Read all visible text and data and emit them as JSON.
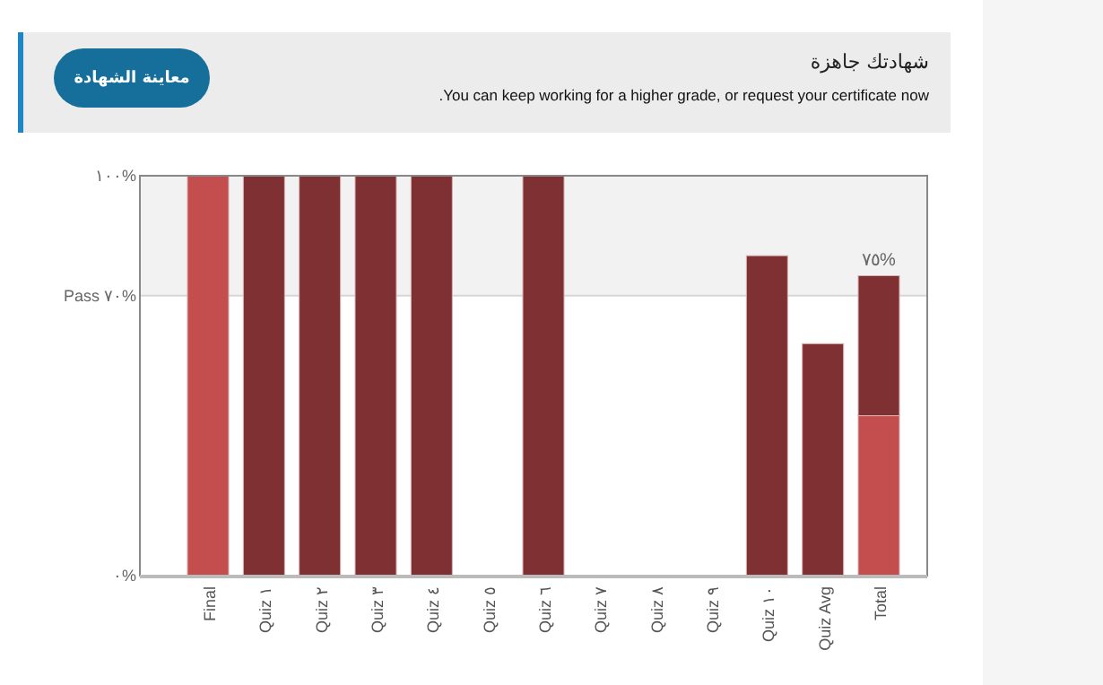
{
  "chart_data": {
    "type": "bar",
    "title": "شهادتك جاهزة",
    "subtitle": "You can keep working for a higher grade, or request your certificate now.",
    "annotations": [
      "معاينة الشهادة"
    ],
    "categories": [
      "Final",
      "Quiz ١",
      "Quiz ٢",
      "Quiz ٣",
      "Quiz ٤",
      "Quiz ٥",
      "Quiz ٦",
      "Quiz ٧",
      "Quiz ٨",
      "Quiz ٩",
      "Quiz ١٠",
      "Quiz Avg",
      "Total"
    ],
    "stacked": true,
    "series": [
      {
        "color": "#c44d4e",
        "values": [
          100,
          null,
          null,
          null,
          null,
          null,
          null,
          null,
          null,
          null,
          null,
          null,
          40
        ]
      },
      {
        "color": "#7f3033",
        "values": [
          null,
          100,
          100,
          100,
          100,
          0,
          100,
          0,
          0,
          0,
          80,
          58,
          35
        ]
      }
    ],
    "totals": [
      null,
      null,
      null,
      null,
      null,
      null,
      null,
      null,
      null,
      null,
      null,
      null,
      "٧٥%"
    ],
    "ylim": [
      0,
      100
    ],
    "yticks": [
      {
        "value": 0,
        "label": "٠%"
      },
      {
        "value": 70,
        "label": "Pass ٧٠%"
      },
      {
        "value": 100,
        "label": "١٠٠%"
      }
    ],
    "bands": [
      {
        "axis": "y",
        "from": 70,
        "to": 100,
        "color": "#f2f2f2"
      }
    ],
    "ref_lines": [
      {
        "axis": "y",
        "value": 70,
        "color": "#d6d6d6"
      }
    ],
    "grid": false
  }
}
